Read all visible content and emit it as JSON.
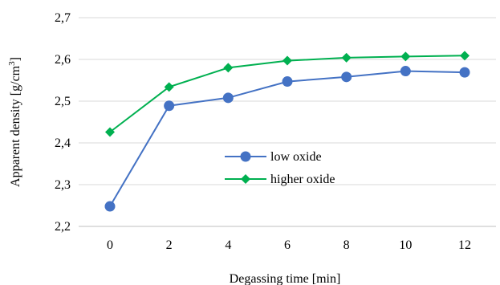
{
  "chart_data": {
    "type": "line",
    "xlabel": "Degassing time [min]",
    "ylabel": "Apparent density [g/cm",
    "ylabel_sup": "3",
    "ylabel_end": "]",
    "x": [
      0,
      2,
      4,
      6,
      8,
      10,
      12
    ],
    "x_tick_labels": [
      "0",
      "2",
      "4",
      "6",
      "8",
      "10",
      "12"
    ],
    "ylim": [
      2.2,
      2.7
    ],
    "y_ticks": [
      2.2,
      2.3,
      2.4,
      2.5,
      2.6,
      2.7
    ],
    "y_tick_labels": [
      "2,2",
      "2,3",
      "2,4",
      "2,5",
      "2,6",
      "2,7"
    ],
    "grid": "horizontal",
    "legend_position": "center",
    "series": [
      {
        "name": "low oxide",
        "color": "#4472c4",
        "marker": "circle",
        "values": [
          2.248,
          2.489,
          2.508,
          2.547,
          2.558,
          2.572,
          2.569
        ]
      },
      {
        "name": "higher oxide",
        "color": "#00b050",
        "marker": "diamond",
        "values": [
          2.426,
          2.534,
          2.58,
          2.597,
          2.604,
          2.607,
          2.609
        ]
      }
    ]
  }
}
